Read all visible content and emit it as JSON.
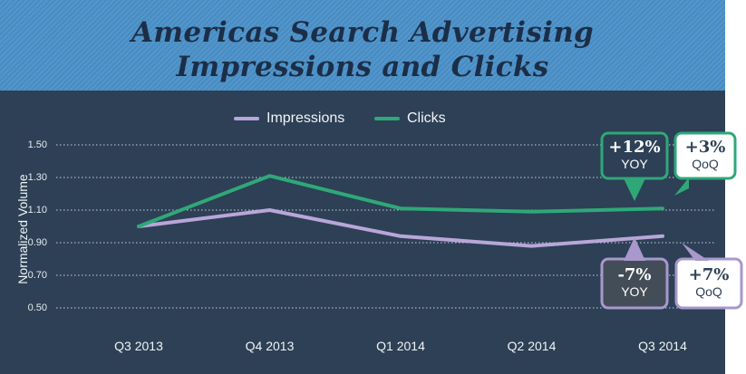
{
  "title_line_1": "Americas Search Advertising",
  "title_line_2": "Impressions and Clicks",
  "colors": {
    "header_bg": "#4a90c8",
    "panel_bg": "#2d4056",
    "impressions": "#b9a6d8",
    "clicks": "#2fa878"
  },
  "chart_data": {
    "type": "line",
    "categories": [
      "Q3 2013",
      "Q4 2013",
      "Q1 2014",
      "Q2 2014",
      "Q3 2014"
    ],
    "series": [
      {
        "name": "Impressions",
        "values": [
          1.0,
          1.1,
          0.94,
          0.88,
          0.94
        ]
      },
      {
        "name": "Clicks",
        "values": [
          1.0,
          1.31,
          1.11,
          1.09,
          1.11
        ]
      }
    ],
    "ylabel": "Normalized Volume",
    "xlabel": "",
    "yticks": [
      "1.50",
      "1.30",
      "1.10",
      "0.90",
      "0.70",
      "0.50"
    ],
    "ylim": [
      0.45,
      1.5
    ],
    "grid": "dotted horizontal",
    "legend": "top-center",
    "annotations": [
      {
        "series": "Clicks",
        "value": "+12%",
        "label": "YOY"
      },
      {
        "series": "Clicks",
        "value": "+3%",
        "label": "QoQ"
      },
      {
        "series": "Impressions",
        "value": "-7%",
        "label": "YOY"
      },
      {
        "series": "Impressions",
        "value": "+7%",
        "label": "QoQ"
      }
    ]
  }
}
